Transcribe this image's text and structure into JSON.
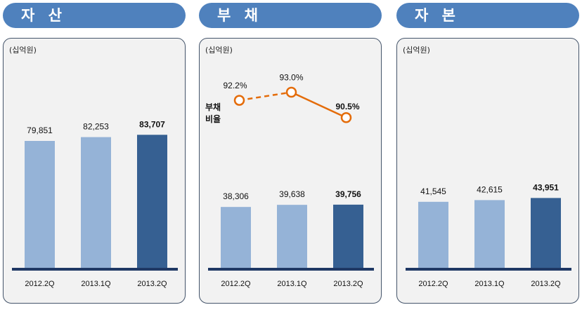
{
  "panels": [
    {
      "title": "자 산",
      "unit": "(십억원)"
    },
    {
      "title": "부 채",
      "unit": "(십억원)",
      "ratio_label_line1": "부채",
      "ratio_label_line2": "비율"
    },
    {
      "title": "자 본",
      "unit": "(십억원)"
    }
  ],
  "colors": {
    "header": "#4f81bd",
    "bar_light": "#95b3d7",
    "bar_dark": "#366092",
    "baseline": "#1f3864",
    "ratio_line": "#e46c0a"
  },
  "chart_data": [
    {
      "type": "bar",
      "title": "자 산",
      "categories": [
        "2012.2Q",
        "2013.1Q",
        "2013.2Q"
      ],
      "values": [
        79851,
        82253,
        83707
      ],
      "value_labels": [
        "79,851",
        "82,253",
        "83,707"
      ],
      "ylabel": "(십억원)",
      "ylim": [
        0,
        90000
      ],
      "highlight_last": true
    },
    {
      "type": "bar",
      "title": "부 채",
      "categories": [
        "2012.2Q",
        "2013.1Q",
        "2013.2Q"
      ],
      "values": [
        38306,
        39638,
        39756
      ],
      "value_labels": [
        "38,306",
        "39,638",
        "39,756"
      ],
      "ylabel": "(십억원)",
      "ylim": [
        0,
        90000
      ],
      "highlight_last": true,
      "line_series": {
        "name": "부채비율",
        "values": [
          92.2,
          93.0,
          90.5
        ],
        "value_labels": [
          "92.2%",
          "93.0%",
          "90.5%"
        ],
        "ylim": [
          88,
          96
        ],
        "first_segment_dashed": true
      }
    },
    {
      "type": "bar",
      "title": "자 본",
      "categories": [
        "2012.2Q",
        "2013.1Q",
        "2013.2Q"
      ],
      "values": [
        41545,
        42615,
        43951
      ],
      "value_labels": [
        "41,545",
        "42,615",
        "43,951"
      ],
      "ylabel": "(십억원)",
      "ylim": [
        0,
        90000
      ],
      "highlight_last": true
    }
  ]
}
